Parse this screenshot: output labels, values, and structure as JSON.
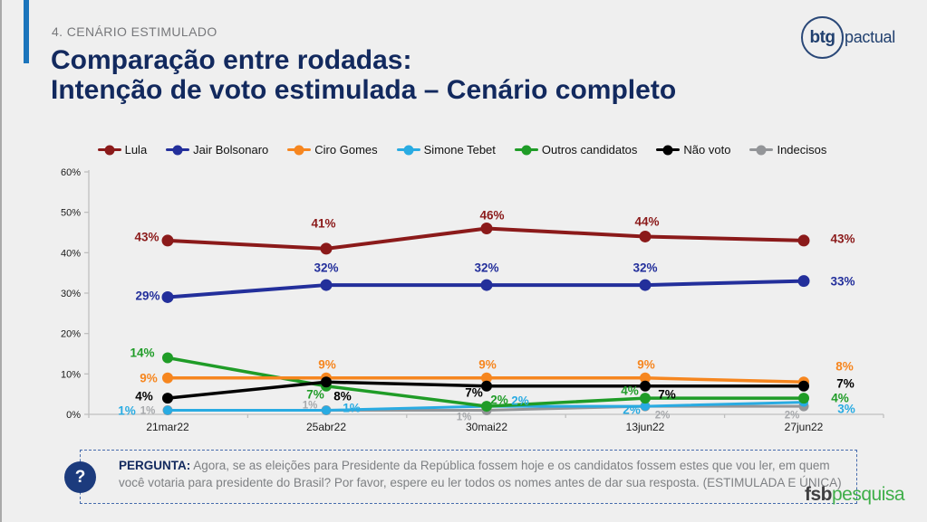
{
  "slide": {
    "kicker": "4. CENÁRIO ESTIMULADO",
    "title_line1": "Comparação entre rodadas:",
    "title_line2": "Intenção de voto estimulada – Cenário completo",
    "brand_top": {
      "bold": "btg",
      "rest": "pactual"
    },
    "brand_bottom": {
      "bold": "fsb",
      "rest": "pesquisa"
    },
    "question": {
      "icon": "?",
      "label": "PERGUNTA:",
      "text": "Agora, se as eleições para Presidente da República fossem hoje e os candidatos fossem estes que vou ler, em quem você votaria para presidente do Brasil? Por favor, espere eu ler todos os nomes antes de dar sua resposta. (ESTIMULADA E ÚNICA)"
    }
  },
  "colors": {
    "accent_bar": "#1B75BC",
    "title_navy": "#12295E",
    "fsb_green": "#3FAE49",
    "axis_gray": "#BFBFBF"
  },
  "chart_data": {
    "type": "line",
    "x": [
      "21mar22",
      "25abr22",
      "30mai22",
      "13jun22",
      "27jun22"
    ],
    "series": [
      {
        "name": "Lula",
        "color": "#8B1A1A",
        "values": [
          43,
          41,
          46,
          44,
          43
        ]
      },
      {
        "name": "Jair Bolsonaro",
        "color": "#232F9B",
        "values": [
          29,
          32,
          32,
          32,
          33
        ]
      },
      {
        "name": "Ciro Gomes",
        "color": "#F6861F",
        "values": [
          9,
          9,
          9,
          9,
          8
        ]
      },
      {
        "name": "Simone Tebet",
        "color": "#29ABE2",
        "values": [
          1,
          1,
          2,
          2,
          3
        ]
      },
      {
        "name": "Outros candidatos",
        "color": "#1F9C27",
        "values": [
          14,
          7,
          2,
          4,
          4
        ]
      },
      {
        "name": "Não voto",
        "color": "#000000",
        "values": [
          4,
          8,
          7,
          7,
          7
        ]
      },
      {
        "name": "Indecisos",
        "color": "#939598",
        "values": [
          1,
          1,
          1,
          2,
          2
        ]
      }
    ],
    "ylim": [
      0,
      60
    ],
    "yticks": [
      "0%",
      "10%",
      "20%",
      "30%",
      "40%",
      "50%",
      "60%"
    ],
    "grid": false,
    "legend_position": "top",
    "data_labels": "value+%"
  }
}
